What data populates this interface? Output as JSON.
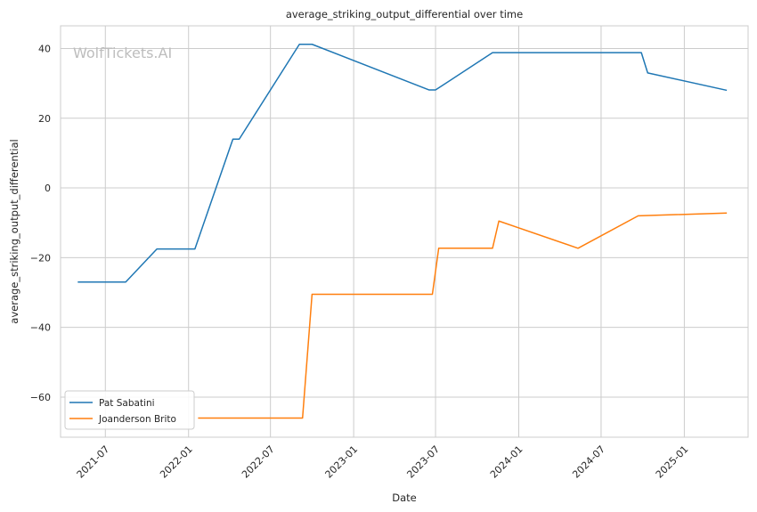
{
  "chart_data": {
    "type": "line",
    "title": "average_striking_output_differential over time",
    "xlabel": "Date",
    "ylabel": "average_striking_output_differential",
    "watermark": "WolfTickets.AI",
    "x_ticks": [
      "2021-07",
      "2022-01",
      "2022-07",
      "2023-01",
      "2023-07",
      "2024-01",
      "2024-07",
      "2025-01"
    ],
    "y_ticks": [
      40,
      20,
      0,
      -20,
      -40,
      -60
    ],
    "xlim": [
      "2021-03-24",
      "2025-05-22"
    ],
    "ylim": [
      -71.5,
      46.5
    ],
    "grid": true,
    "legend_position": "lower-left",
    "series": [
      {
        "name": "Pat Sabatini",
        "color": "#1f77b4",
        "points": [
          [
            "2021-05-01",
            -27.0
          ],
          [
            "2021-08-15",
            -27.0
          ],
          [
            "2021-10-23",
            -17.5
          ],
          [
            "2022-01-15",
            -17.5
          ],
          [
            "2022-04-09",
            14.0
          ],
          [
            "2022-04-23",
            14.0
          ],
          [
            "2022-09-03",
            41.2
          ],
          [
            "2022-10-01",
            41.2
          ],
          [
            "2023-06-17",
            28.1
          ],
          [
            "2023-07-01",
            28.1
          ],
          [
            "2023-11-04",
            38.8
          ],
          [
            "2024-09-28",
            38.8
          ],
          [
            "2024-10-12",
            33.0
          ],
          [
            "2025-04-05",
            28.0
          ]
        ]
      },
      {
        "name": "Joanderson Brito",
        "color": "#ff7f0e",
        "points": [
          [
            "2022-01-22",
            -66.0
          ],
          [
            "2022-09-10",
            -66.0
          ],
          [
            "2022-10-01",
            -30.5
          ],
          [
            "2023-06-24",
            -30.5
          ],
          [
            "2023-07-08",
            -17.3
          ],
          [
            "2023-11-04",
            -17.3
          ],
          [
            "2023-11-18",
            -9.5
          ],
          [
            "2024-05-11",
            -17.3
          ],
          [
            "2024-09-21",
            -8.0
          ],
          [
            "2025-04-05",
            -7.2
          ]
        ]
      }
    ]
  }
}
